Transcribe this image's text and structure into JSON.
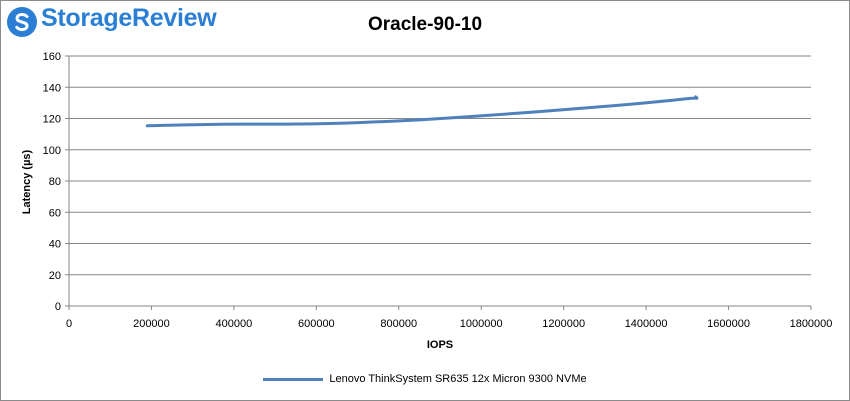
{
  "brand": {
    "name": "StorageReview",
    "color": "#2a7fd4"
  },
  "chart_data": {
    "type": "line",
    "title": "Oracle-90-10",
    "xlabel": "IOPS",
    "ylabel": "Latency (µs)",
    "xlim": [
      0,
      1800000
    ],
    "ylim": [
      0,
      160
    ],
    "xticks": [
      0,
      200000,
      400000,
      600000,
      800000,
      1000000,
      1200000,
      1400000,
      1600000,
      1800000
    ],
    "yticks": [
      0,
      20,
      40,
      60,
      80,
      100,
      120,
      140,
      160
    ],
    "xtick_labels": [
      "0",
      "200000",
      "400000",
      "600000",
      "800000",
      "1000000",
      "1200000",
      "1400000",
      "1600000",
      "1800000"
    ],
    "ytick_labels": [
      "0",
      "20",
      "40",
      "60",
      "80",
      "100",
      "120",
      "140",
      "160"
    ],
    "grid": true,
    "legend_position": "bottom",
    "series": [
      {
        "name": "Lenovo ThinkSystem SR635 12x Micron 9300 NVMe",
        "color": "#4f81bd",
        "x": [
          190000,
          370000,
          480000,
          630000,
          790000,
          920000,
          1050000,
          1200000,
          1340000,
          1470000,
          1515000,
          1525000,
          1520000
        ],
        "y": [
          115.3,
          116.5,
          116.3,
          116.6,
          118.3,
          120.2,
          122.6,
          125.6,
          128.6,
          131.8,
          133.2,
          132.8,
          133.8
        ]
      }
    ]
  }
}
